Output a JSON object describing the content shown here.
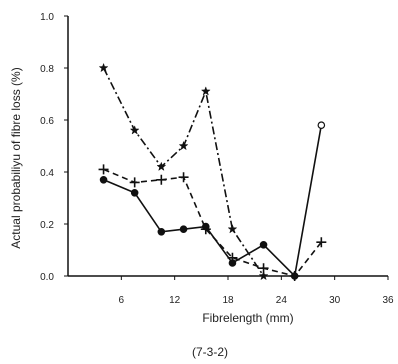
{
  "chart_data": {
    "type": "line",
    "xlabel": "Fibrelength (mm)",
    "ylabel": "Actual probabiliyu of fibre loss (%)",
    "caption": "(7-3-2)",
    "xlim": [
      0,
      36
    ],
    "ylim": [
      0,
      1.0
    ],
    "x_ticks": [
      "6",
      "12",
      "18",
      "24",
      "30",
      "36"
    ],
    "x_tick_values": [
      6,
      12,
      18,
      24,
      30,
      36
    ],
    "y_ticks": [
      "0.0",
      "0.2",
      "0.4",
      "0.6",
      "0.8",
      "1.0"
    ],
    "y_tick_values": [
      0.0,
      0.2,
      0.4,
      0.6,
      0.8,
      1.0
    ],
    "grid": false,
    "series": [
      {
        "style": "dash-dot",
        "marker": "star",
        "color": "#111111",
        "x": [
          4,
          7.5,
          10.5,
          13,
          15.5,
          18.5,
          22
        ],
        "y": [
          0.8,
          0.56,
          0.42,
          0.5,
          0.71,
          0.18,
          0.0
        ]
      },
      {
        "style": "dashed",
        "marker": "plus",
        "color": "#111111",
        "x": [
          4,
          7.5,
          10.5,
          13,
          15.5,
          18.5,
          22,
          25.5,
          28.5
        ],
        "y": [
          0.41,
          0.36,
          0.37,
          0.38,
          0.18,
          0.07,
          0.03,
          0.0,
          0.13
        ]
      },
      {
        "style": "solid",
        "marker": "circle",
        "color": "#111111",
        "x": [
          4,
          7.5,
          10.5,
          13,
          15.5,
          18.5,
          22,
          25.5,
          28.5
        ],
        "y": [
          0.37,
          0.32,
          0.17,
          0.18,
          0.19,
          0.05,
          0.12,
          0.0,
          0.58
        ]
      }
    ]
  }
}
